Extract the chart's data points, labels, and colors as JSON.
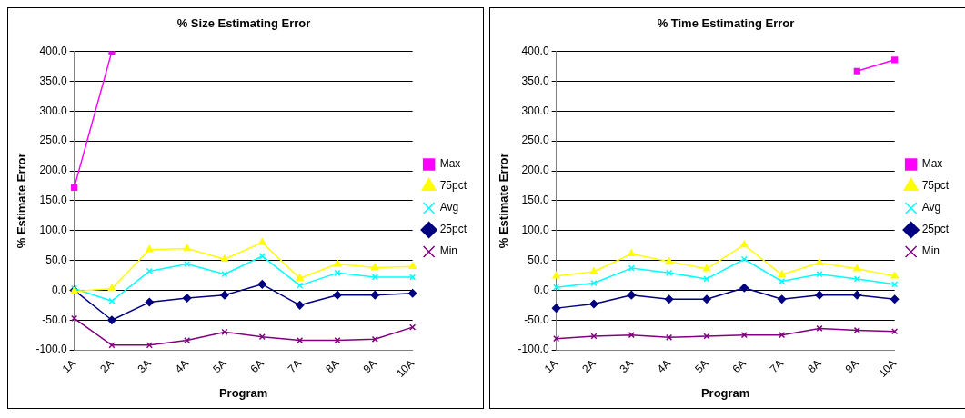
{
  "chart_data": [
    {
      "type": "line",
      "title": "% Size Estimating Error",
      "xlabel": "Program",
      "ylabel": "% Estimate Error",
      "categories": [
        "1A",
        "2A",
        "3A",
        "4A",
        "5A",
        "6A",
        "7A",
        "8A",
        "9A",
        "10A"
      ],
      "ylim": [
        -100,
        400
      ],
      "yticks": [
        {
          "value": -100,
          "label": "-100.0"
        },
        {
          "value": -50,
          "label": "-50.0"
        },
        {
          "value": 0,
          "label": "0.0"
        },
        {
          "value": 50,
          "label": "50.0"
        },
        {
          "value": 100,
          "label": "100.0"
        },
        {
          "value": 150,
          "label": "150.0"
        },
        {
          "value": 200,
          "label": "200.0"
        },
        {
          "value": 250,
          "label": "250.0"
        },
        {
          "value": 300,
          "label": "300.0"
        },
        {
          "value": 350,
          "label": "350.0"
        },
        {
          "value": 400,
          "label": "400.0"
        }
      ],
      "grid": "y",
      "legend": "right",
      "series": [
        {
          "name": "Max",
          "color": "#ff00ff",
          "marker": "square",
          "values": [
            172,
            400,
            null,
            null,
            null,
            null,
            null,
            null,
            null,
            null
          ]
        },
        {
          "name": "75pct",
          "color": "#ffff00",
          "marker": "triangle",
          "values": [
            -2,
            3,
            68,
            70,
            52,
            80,
            20,
            44,
            38,
            40
          ]
        },
        {
          "name": "Avg",
          "color": "#00ffff",
          "marker": "cross",
          "values": [
            3,
            -18,
            32,
            44,
            27,
            57,
            8,
            29,
            22,
            22
          ]
        },
        {
          "name": "25pct",
          "color": "#000080",
          "marker": "diamond",
          "values": [
            0,
            -50,
            -20,
            -13,
            -8,
            10,
            -25,
            -8,
            -8,
            -5
          ]
        },
        {
          "name": "Min",
          "color": "#800080",
          "marker": "cross",
          "values": [
            -47,
            -92,
            -92,
            -84,
            -70,
            -78,
            -84,
            -84,
            -82,
            -62
          ]
        }
      ]
    },
    {
      "type": "line",
      "title": "% Time Estimating Error",
      "xlabel": "Program",
      "ylabel": "% Estimate Error",
      "categories": [
        "1A",
        "2A",
        "3A",
        "4A",
        "5A",
        "6A",
        "7A",
        "8A",
        "9A",
        "10A"
      ],
      "ylim": [
        -100,
        400
      ],
      "yticks": [
        {
          "value": -100,
          "label": "-100.0"
        },
        {
          "value": -50,
          "label": "-50.0"
        },
        {
          "value": 0,
          "label": "0.0"
        },
        {
          "value": 50,
          "label": "50.0"
        },
        {
          "value": 100,
          "label": "100.0"
        },
        {
          "value": 150,
          "label": "150.0"
        },
        {
          "value": 200,
          "label": "200.0"
        },
        {
          "value": 250,
          "label": "250.0"
        },
        {
          "value": 300,
          "label": "300.0"
        },
        {
          "value": 350,
          "label": "350.0"
        },
        {
          "value": 400,
          "label": "400.0"
        }
      ],
      "grid": "y",
      "legend": "right",
      "series": [
        {
          "name": "Max",
          "color": "#ff00ff",
          "marker": "square",
          "values": [
            null,
            null,
            null,
            null,
            null,
            null,
            null,
            null,
            367,
            386
          ]
        },
        {
          "name": "75pct",
          "color": "#ffff00",
          "marker": "triangle",
          "values": [
            24,
            31,
            61,
            48,
            36,
            76,
            26,
            46,
            36,
            24
          ]
        },
        {
          "name": "Avg",
          "color": "#00ffff",
          "marker": "cross",
          "values": [
            5,
            12,
            37,
            29,
            19,
            52,
            15,
            27,
            19,
            10
          ]
        },
        {
          "name": "25pct",
          "color": "#000080",
          "marker": "diamond",
          "values": [
            -30,
            -23,
            -8,
            -15,
            -15,
            4,
            -15,
            -8,
            -8,
            -15
          ]
        },
        {
          "name": "Min",
          "color": "#800080",
          "marker": "cross",
          "values": [
            -81,
            -77,
            -75,
            -79,
            -77,
            -75,
            -75,
            -64,
            -67,
            -69
          ]
        }
      ]
    }
  ]
}
